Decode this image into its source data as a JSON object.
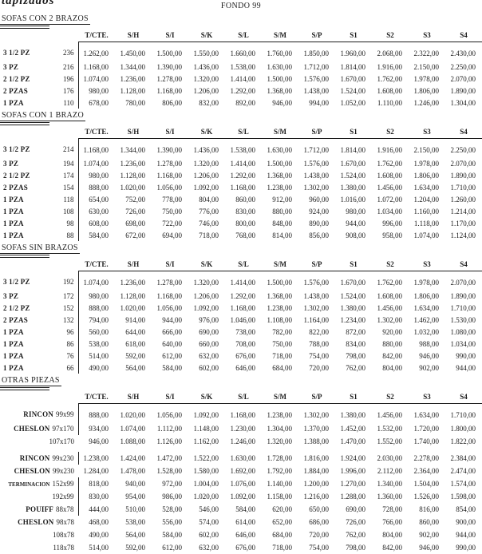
{
  "page": {
    "logo": "tapizados",
    "title": "FONDO 99"
  },
  "colors": {
    "ink": "#1c1c1c",
    "background": "#ffffff"
  },
  "columns": [
    "T/CTE.",
    "S/H",
    "S/I",
    "S/K",
    "S/L",
    "S/M",
    "S/P",
    "S1",
    "S2",
    "S3",
    "S4"
  ],
  "sections": [
    {
      "title": "SOFAS CON 2 BRAZOS",
      "label_style": "split",
      "rows": [
        {
          "label": "3 1/2 PZ",
          "size": "236",
          "bar": true,
          "prices": [
            "1.262,00",
            "1.450,00",
            "1.500,00",
            "1.550,00",
            "1.660,00",
            "1.760,00",
            "1.850,00",
            "1.960,00",
            "2.068,00",
            "2.322,00",
            "2.430,00"
          ]
        },
        {
          "label": "3 PZ",
          "size": "216",
          "bar": true,
          "prices": [
            "1.168,00",
            "1.344,00",
            "1.390,00",
            "1.436,00",
            "1.538,00",
            "1.630,00",
            "1.712,00",
            "1.814,00",
            "1.916,00",
            "2.150,00",
            "2.250,00"
          ]
        },
        {
          "label": "2 1/2 PZ",
          "size": "196",
          "bar": true,
          "prices": [
            "1.074,00",
            "1.236,00",
            "1.278,00",
            "1.320,00",
            "1.414,00",
            "1.500,00",
            "1.576,00",
            "1.670,00",
            "1.762,00",
            "1.978,00",
            "2.070,00"
          ]
        },
        {
          "label": "2 PZAS",
          "size": "176",
          "bar": true,
          "prices": [
            "980,00",
            "1.128,00",
            "1.168,00",
            "1.206,00",
            "1.292,00",
            "1.368,00",
            "1.438,00",
            "1.524,00",
            "1.608,00",
            "1.806,00",
            "1.890,00"
          ]
        },
        {
          "label": "1 PZA",
          "size": "110",
          "bar": true,
          "prices": [
            "678,00",
            "780,00",
            "806,00",
            "832,00",
            "892,00",
            "946,00",
            "994,00",
            "1.052,00",
            "1.110,00",
            "1.246,00",
            "1.304,00"
          ]
        }
      ]
    },
    {
      "title": "SOFAS CON 1 BRAZO",
      "label_style": "split",
      "rows": [
        {
          "label": "3 1/2 PZ",
          "size": "214",
          "bar": true,
          "prices": [
            "1.168,00",
            "1.344,00",
            "1.390,00",
            "1.436,00",
            "1.538,00",
            "1.630,00",
            "1.712,00",
            "1.814,00",
            "1.916,00",
            "2.150,00",
            "2.250,00"
          ]
        },
        {
          "label": "3 PZ",
          "size": "194",
          "bar": true,
          "prices": [
            "1.074,00",
            "1.236,00",
            "1.278,00",
            "1.320,00",
            "1.414,00",
            "1.500,00",
            "1.576,00",
            "1.670,00",
            "1.762,00",
            "1.978,00",
            "2.070,00"
          ]
        },
        {
          "label": "2 1/2 PZ",
          "size": "174",
          "bar": true,
          "prices": [
            "980,00",
            "1.128,00",
            "1.168,00",
            "1.206,00",
            "1.292,00",
            "1.368,00",
            "1.438,00",
            "1.524,00",
            "1.608,00",
            "1.806,00",
            "1.890,00"
          ]
        },
        {
          "label": "2 PZAS",
          "size": "154",
          "bar": true,
          "prices": [
            "888,00",
            "1.020,00",
            "1.056,00",
            "1.092,00",
            "1.168,00",
            "1.238,00",
            "1.302,00",
            "1.380,00",
            "1.456,00",
            "1.634,00",
            "1.710,00"
          ]
        },
        {
          "label": "1 PZA",
          "size": "118",
          "bar": true,
          "prices": [
            "654,00",
            "752,00",
            "778,00",
            "804,00",
            "860,00",
            "912,00",
            "960,00",
            "1.016,00",
            "1.072,00",
            "1.204,00",
            "1.260,00"
          ]
        },
        {
          "label": "1 PZA",
          "size": "108",
          "bar": true,
          "prices": [
            "630,00",
            "726,00",
            "750,00",
            "776,00",
            "830,00",
            "880,00",
            "924,00",
            "980,00",
            "1.034,00",
            "1.160,00",
            "1.214,00"
          ]
        },
        {
          "label": "1 PZA",
          "size": "98",
          "bar": true,
          "prices": [
            "608,00",
            "698,00",
            "722,00",
            "746,00",
            "800,00",
            "848,00",
            "890,00",
            "944,00",
            "996,00",
            "1.118,00",
            "1.170,00"
          ]
        },
        {
          "label": "1 PZA",
          "size": "88",
          "bar": true,
          "prices": [
            "584,00",
            "672,00",
            "694,00",
            "718,00",
            "768,00",
            "814,00",
            "856,00",
            "908,00",
            "958,00",
            "1.074,00",
            "1.124,00"
          ]
        }
      ]
    },
    {
      "title": "SOFAS SIN BRAZOS",
      "label_style": "split",
      "rows": [
        {
          "label": "3 1/2 PZ",
          "size": "192",
          "bar": true,
          "prices": [
            "1.074,00",
            "1.236,00",
            "1.278,00",
            "1.320,00",
            "1.414,00",
            "1.500,00",
            "1.576,00",
            "1.670,00",
            "1.762,00",
            "1.978,00",
            "2.070,00"
          ]
        },
        {
          "label": "3 PZ",
          "size": "172",
          "bar": true,
          "prices": [
            "980,00",
            "1.128,00",
            "1.168,00",
            "1.206,00",
            "1.292,00",
            "1.368,00",
            "1.438,00",
            "1.524,00",
            "1.608,00",
            "1.806,00",
            "1.890,00"
          ]
        },
        {
          "label": "2 1/2 PZ",
          "size": "152",
          "bar": true,
          "prices": [
            "888,00",
            "1.020,00",
            "1.056,00",
            "1.092,00",
            "1.168,00",
            "1.238,00",
            "1.302,00",
            "1.380,00",
            "1.456,00",
            "1.634,00",
            "1.710,00"
          ]
        },
        {
          "label": "2 PZAS",
          "size": "132",
          "bar": true,
          "prices": [
            "794,00",
            "914,00",
            "944,00",
            "976,00",
            "1.046,00",
            "1.108,00",
            "1.164,00",
            "1.234,00",
            "1.302,00",
            "1.462,00",
            "1.530,00"
          ]
        },
        {
          "label": "1 PZA",
          "size": "96",
          "bar": true,
          "prices": [
            "560,00",
            "644,00",
            "666,00",
            "690,00",
            "738,00",
            "782,00",
            "822,00",
            "872,00",
            "920,00",
            "1.032,00",
            "1.080,00"
          ]
        },
        {
          "label": "1 PZA",
          "size": "86",
          "bar": true,
          "prices": [
            "538,00",
            "618,00",
            "640,00",
            "660,00",
            "708,00",
            "750,00",
            "788,00",
            "834,00",
            "880,00",
            "988,00",
            "1.034,00"
          ]
        },
        {
          "label": "1 PZA",
          "size": "76",
          "bar": true,
          "prices": [
            "514,00",
            "592,00",
            "612,00",
            "632,00",
            "676,00",
            "718,00",
            "754,00",
            "798,00",
            "842,00",
            "946,00",
            "990,00"
          ]
        },
        {
          "label": "1 PZA",
          "size": "66",
          "bar": true,
          "prices": [
            "490,00",
            "564,00",
            "584,00",
            "602,00",
            "646,00",
            "684,00",
            "720,00",
            "762,00",
            "804,00",
            "902,00",
            "944,00"
          ]
        }
      ]
    },
    {
      "title": "OTRAS PIEZAS",
      "label_style": "combined",
      "rows": [
        {
          "label": "RINCON",
          "size": "99x99",
          "bar": true,
          "prices": [
            "888,00",
            "1.020,00",
            "1.056,00",
            "1.092,00",
            "1.168,00",
            "1.238,00",
            "1.302,00",
            "1.380,00",
            "1.456,00",
            "1.634,00",
            "1.710,00"
          ]
        },
        {
          "label": "CHESLON",
          "size": "97x170",
          "bar": true,
          "prices": [
            "934,00",
            "1.074,00",
            "1.112,00",
            "1.148,00",
            "1.230,00",
            "1.304,00",
            "1.370,00",
            "1.452,00",
            "1.532,00",
            "1.720,00",
            "1.800,00"
          ]
        },
        {
          "label": "",
          "size": "107x170",
          "bar": false,
          "prices": [
            "946,00",
            "1.088,00",
            "1.126,00",
            "1.162,00",
            "1.246,00",
            "1.320,00",
            "1.388,00",
            "1.470,00",
            "1.552,00",
            "1.740,00",
            "1.822,00"
          ]
        },
        {
          "label": "RINCON",
          "size": "99x230",
          "bar": true,
          "gap_before": true,
          "prices": [
            "1.238,00",
            "1.424,00",
            "1.472,00",
            "1.522,00",
            "1.630,00",
            "1.728,00",
            "1.816,00",
            "1.924,00",
            "2.030,00",
            "2.278,00",
            "2.384,00"
          ]
        },
        {
          "label": "CHESLON",
          "size": "99x230",
          "bar": false,
          "prices": [
            "1.284,00",
            "1.478,00",
            "1.528,00",
            "1.580,00",
            "1.692,00",
            "1.792,00",
            "1.884,00",
            "1.996,00",
            "2.112,00",
            "2.364,00",
            "2.474,00"
          ]
        },
        {
          "label": "TERMINACION",
          "size": "152x99",
          "bar": true,
          "small": true,
          "prices": [
            "818,00",
            "940,00",
            "972,00",
            "1.004,00",
            "1.076,00",
            "1.140,00",
            "1.200,00",
            "1.270,00",
            "1.340,00",
            "1.504,00",
            "1.574,00"
          ]
        },
        {
          "label": "",
          "size": "192x99",
          "bar": true,
          "prices": [
            "830,00",
            "954,00",
            "986,00",
            "1.020,00",
            "1.092,00",
            "1.158,00",
            "1.216,00",
            "1.288,00",
            "1.360,00",
            "1.526,00",
            "1.598,00"
          ]
        },
        {
          "label": "POUIFF",
          "size": "88x78",
          "bar": true,
          "prices": [
            "444,00",
            "510,00",
            "528,00",
            "546,00",
            "584,00",
            "620,00",
            "650,00",
            "690,00",
            "728,00",
            "816,00",
            "854,00"
          ]
        },
        {
          "label": "CHESLON",
          "size": "98x78",
          "bar": false,
          "prices": [
            "468,00",
            "538,00",
            "556,00",
            "574,00",
            "614,00",
            "652,00",
            "686,00",
            "726,00",
            "766,00",
            "860,00",
            "900,00"
          ]
        },
        {
          "label": "",
          "size": "108x78",
          "bar": false,
          "prices": [
            "490,00",
            "564,00",
            "584,00",
            "602,00",
            "646,00",
            "684,00",
            "720,00",
            "762,00",
            "804,00",
            "902,00",
            "944,00"
          ]
        },
        {
          "label": "",
          "size": "118x78",
          "bar": false,
          "prices": [
            "514,00",
            "592,00",
            "612,00",
            "632,00",
            "676,00",
            "718,00",
            "754,00",
            "798,00",
            "842,00",
            "946,00",
            "990,00"
          ]
        }
      ]
    }
  ]
}
